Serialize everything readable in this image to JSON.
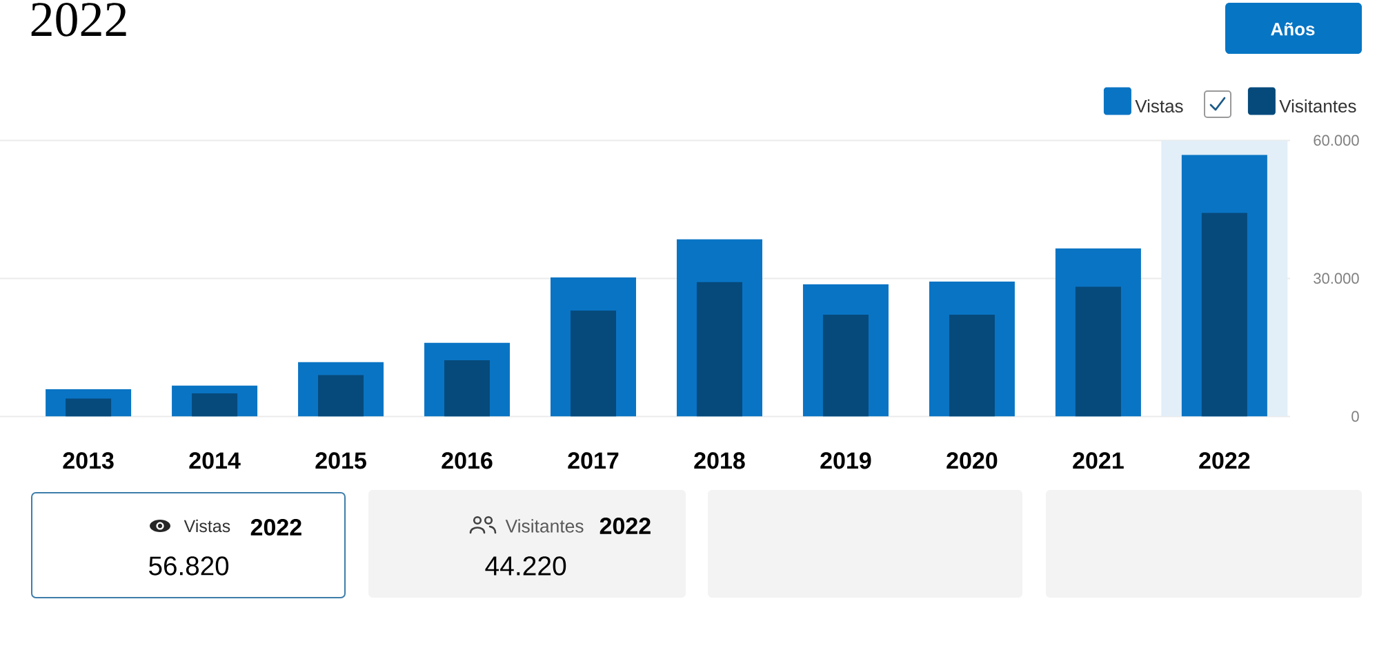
{
  "chart_data": {
    "type": "bar",
    "title": "2022",
    "categories": [
      "2013",
      "2014",
      "2015",
      "2016",
      "2017",
      "2018",
      "2019",
      "2020",
      "2021",
      "2022"
    ],
    "series": [
      {
        "name": "Vistas",
        "color": "#0a74c4",
        "values": [
          5900,
          6700,
          11800,
          16000,
          30200,
          38500,
          28700,
          29300,
          36500,
          56820
        ]
      },
      {
        "name": "Visitantes",
        "color": "#064a7b",
        "values": [
          3900,
          5000,
          9000,
          12200,
          23000,
          29200,
          22100,
          22100,
          28200,
          44220
        ]
      }
    ],
    "ylim": [
      0,
      60000
    ],
    "yticks": [
      0,
      {
        "value": 30000,
        "label": "30.000"
      },
      {
        "value": 60000,
        "label": "60.000"
      }
    ],
    "grid": "y",
    "legend": "top right",
    "bands": [
      {
        "axis": "x",
        "from": "2022",
        "to": "2022",
        "color": "#e2eef8"
      }
    ],
    "annotations": [
      "Años",
      "Vistas",
      "2022",
      "56.820",
      "Visitantes",
      "2022",
      "44.220"
    ]
  }
}
